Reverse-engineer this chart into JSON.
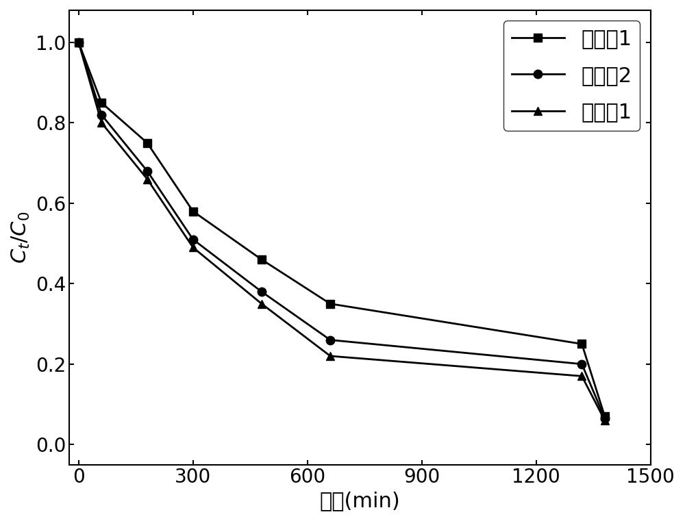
{
  "series": [
    {
      "label": "对比例1",
      "marker": "s",
      "x": [
        0,
        60,
        180,
        300,
        480,
        660,
        1320,
        1380
      ],
      "y": [
        1.0,
        0.85,
        0.75,
        0.58,
        0.46,
        0.35,
        0.25,
        0.07
      ]
    },
    {
      "label": "对比例2",
      "marker": "o",
      "x": [
        0,
        60,
        180,
        300,
        480,
        660,
        1320,
        1380
      ],
      "y": [
        1.0,
        0.82,
        0.68,
        0.51,
        0.38,
        0.26,
        0.2,
        0.065
      ]
    },
    {
      "label": "实施例1",
      "marker": "^",
      "x": [
        0,
        60,
        180,
        300,
        480,
        660,
        1320,
        1380
      ],
      "y": [
        1.0,
        0.8,
        0.66,
        0.49,
        0.35,
        0.22,
        0.17,
        0.06
      ]
    }
  ],
  "xlabel": "时间(min)",
  "ylabel_parts": [
    "C",
    "t",
    "C",
    "0"
  ],
  "xlim": [
    -25,
    1500
  ],
  "ylim": [
    -0.05,
    1.08
  ],
  "xticks": [
    0,
    300,
    600,
    900,
    1200,
    1500
  ],
  "yticks": [
    0.0,
    0.2,
    0.4,
    0.6,
    0.8,
    1.0
  ],
  "line_color": "#000000",
  "line_width": 2.0,
  "marker_size": 9,
  "legend_loc": "upper right",
  "font_size": 22,
  "tick_font_size": 20,
  "label_font_size": 22
}
